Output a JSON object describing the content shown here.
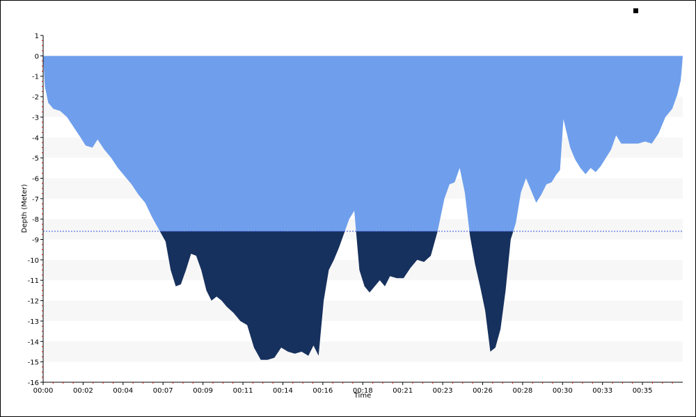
{
  "chart_data": {
    "type": "area",
    "title": "",
    "xlabel": "Time",
    "ylabel": "Depth (Meter)",
    "y_ticks": [
      1,
      0,
      -1,
      -2,
      -3,
      -4,
      -5,
      -6,
      -7,
      -8,
      -9,
      -10,
      -11,
      -12,
      -13,
      -14,
      -15,
      -16
    ],
    "x_ticks": [
      "00:00",
      "00:02",
      "00:04",
      "00:07",
      "00:09",
      "00:11",
      "00:14",
      "00:16",
      "00:18",
      "00:21",
      "00:23",
      "00:26",
      "00:28",
      "00:30",
      "00:33",
      "00:35"
    ],
    "xlim_minutes": [
      0,
      37.62
    ],
    "ylim": [
      -16,
      1
    ],
    "grid": "alternating horizontal bands",
    "reference_line_depth": -8.6,
    "colors": {
      "shallow_fill": "#6f9fec",
      "deep_fill": "#17315e",
      "reference_line": "#3355dd",
      "band": "#f7f7f7",
      "tick_mark": "#cc0000"
    },
    "series": [
      {
        "x_minutes": [
          0,
          0.1,
          0.3,
          0.6,
          1.0,
          1.4,
          1.8,
          2.2,
          2.5,
          2.9,
          3.2,
          3.6,
          4.0,
          4.4,
          4.8,
          5.2,
          5.6,
          6.0,
          6.4,
          6.8,
          7.2,
          7.5,
          7.8,
          8.1,
          8.4,
          8.7,
          9.0,
          9.3,
          9.6,
          9.9,
          10.2,
          10.5,
          10.8,
          11.2,
          11.6,
          12.0,
          12.4,
          12.8,
          13.2,
          13.6,
          14.0,
          14.4,
          14.8,
          15.2,
          15.6,
          15.9,
          16.2,
          16.5,
          16.8,
          17.1,
          17.4,
          17.7,
          18.0,
          18.3,
          18.6,
          18.9,
          19.2,
          19.5,
          19.8,
          20.1,
          20.4,
          20.8,
          21.2,
          21.6,
          22.0,
          22.4,
          22.8,
          23.2,
          23.6,
          23.9,
          24.2,
          24.5,
          24.8,
          25.1,
          25.4,
          25.7,
          26.0,
          26.3,
          26.6,
          26.9,
          27.2,
          27.5,
          27.8,
          28.1,
          28.4,
          28.7,
          29.0,
          29.3,
          29.6,
          29.9,
          30.2,
          30.4,
          30.6,
          30.8,
          31.0,
          31.3,
          31.6,
          31.9,
          32.2,
          32.5,
          32.8,
          33.1,
          33.4,
          33.7,
          34.0,
          34.3,
          34.6,
          35.0,
          35.4,
          35.8,
          36.2,
          36.6,
          37.0,
          37.3,
          37.5,
          37.62
        ],
        "depth_m": [
          0,
          -1.5,
          -2.3,
          -2.6,
          -2.7,
          -3.0,
          -3.5,
          -4.0,
          -4.4,
          -4.5,
          -4.1,
          -4.6,
          -5.0,
          -5.5,
          -5.9,
          -6.3,
          -6.8,
          -7.2,
          -7.9,
          -8.5,
          -9.1,
          -10.5,
          -11.3,
          -11.2,
          -10.5,
          -9.7,
          -9.8,
          -10.5,
          -11.5,
          -12.0,
          -11.8,
          -12.0,
          -12.3,
          -12.6,
          -13.0,
          -13.2,
          -14.3,
          -14.9,
          -14.9,
          -14.8,
          -14.3,
          -14.5,
          -14.6,
          -14.5,
          -14.7,
          -14.2,
          -14.7,
          -12.0,
          -10.5,
          -10.0,
          -9.4,
          -8.7,
          -8.0,
          -7.6,
          -10.5,
          -11.3,
          -11.6,
          -11.3,
          -11.0,
          -11.3,
          -10.8,
          -10.9,
          -10.9,
          -10.4,
          -10.0,
          -10.1,
          -9.8,
          -8.6,
          -7.0,
          -6.3,
          -6.2,
          -5.5,
          -6.7,
          -8.8,
          -10.2,
          -11.3,
          -12.5,
          -14.5,
          -14.3,
          -13.4,
          -11.5,
          -9.0,
          -8.2,
          -6.7,
          -6.0,
          -6.6,
          -7.2,
          -6.8,
          -6.3,
          -6.2,
          -5.8,
          -5.6,
          -3.1,
          -3.8,
          -4.5,
          -5.1,
          -5.5,
          -5.8,
          -5.5,
          -5.7,
          -5.4,
          -5.0,
          -4.6,
          -3.9,
          -4.3,
          -4.3,
          -4.3,
          -4.3,
          -4.2,
          -4.3,
          -3.8,
          -3.0,
          -2.6,
          -1.9,
          -1.2,
          0
        ]
      }
    ]
  }
}
